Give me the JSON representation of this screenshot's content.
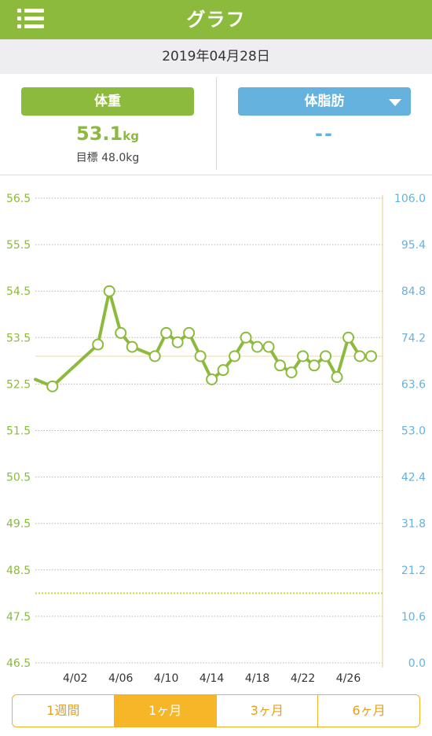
{
  "header": {
    "title": "グラフ"
  },
  "date": "2019年04月28日",
  "weight_card": {
    "label": "体重",
    "value": "53.1",
    "unit": "kg",
    "goal": "目標 48.0kg"
  },
  "fat_card": {
    "label": "体脂肪",
    "value": "--"
  },
  "tabs": [
    {
      "label": "1週間",
      "active": false
    },
    {
      "label": "1ヶ月",
      "active": true
    },
    {
      "label": "3ヶ月",
      "active": false
    },
    {
      "label": "6ヶ月",
      "active": false
    }
  ],
  "colors": {
    "weight": "#8cba3c",
    "fat": "#65b2de",
    "goal": "#d6e04a",
    "accent": "#f7b628"
  },
  "chart_data": {
    "type": "line",
    "x_tick_labels": [
      "4/02",
      "4/06",
      "4/10",
      "4/14",
      "4/18",
      "4/22",
      "4/26"
    ],
    "x_tick_days": [
      2,
      6,
      10,
      14,
      18,
      22,
      26
    ],
    "xlim_days": [
      -1.5,
      29
    ],
    "y_left": {
      "ticks": [
        "56.5",
        "55.5",
        "54.5",
        "53.5",
        "52.5",
        "51.5",
        "50.5",
        "49.5",
        "48.5",
        "47.5",
        "46.5"
      ],
      "range": [
        46.5,
        56.5
      ]
    },
    "y_right": {
      "ticks": [
        "106.0",
        "95.4",
        "84.8",
        "74.2",
        "63.6",
        "53.0",
        "42.4",
        "31.8",
        "21.2",
        "10.6",
        "0.0"
      ],
      "range": [
        0.0,
        106.0
      ]
    },
    "goal": 48.0,
    "average": 53.1,
    "series": [
      {
        "points": [
          {
            "day": -1.5,
            "value": 52.6,
            "marker": false
          },
          {
            "day": 0,
            "value": 52.45,
            "marker": true
          },
          {
            "day": 4,
            "value": 53.35,
            "marker": true
          },
          {
            "day": 5,
            "value": 54.5,
            "marker": true
          },
          {
            "day": 6,
            "value": 53.6,
            "marker": true
          },
          {
            "day": 7,
            "value": 53.3,
            "marker": true
          },
          {
            "day": 9,
            "value": 53.1,
            "marker": true
          },
          {
            "day": 10,
            "value": 53.6,
            "marker": true
          },
          {
            "day": 11,
            "value": 53.4,
            "marker": true
          },
          {
            "day": 12,
            "value": 53.6,
            "marker": true
          },
          {
            "day": 13,
            "value": 53.1,
            "marker": true
          },
          {
            "day": 14,
            "value": 52.6,
            "marker": true
          },
          {
            "day": 15,
            "value": 52.8,
            "marker": true
          },
          {
            "day": 16,
            "value": 53.1,
            "marker": true
          },
          {
            "day": 17,
            "value": 53.5,
            "marker": true
          },
          {
            "day": 18,
            "value": 53.3,
            "marker": true
          },
          {
            "day": 19,
            "value": 53.3,
            "marker": true
          },
          {
            "day": 20,
            "value": 52.9,
            "marker": true
          },
          {
            "day": 21,
            "value": 52.75,
            "marker": true
          },
          {
            "day": 22,
            "value": 53.1,
            "marker": true
          },
          {
            "day": 23,
            "value": 52.9,
            "marker": true
          },
          {
            "day": 24,
            "value": 53.1,
            "marker": true
          },
          {
            "day": 25,
            "value": 52.65,
            "marker": true
          },
          {
            "day": 26,
            "value": 53.5,
            "marker": true
          },
          {
            "day": 27,
            "value": 53.1,
            "marker": true
          },
          {
            "day": 28,
            "value": 53.1,
            "marker": true
          }
        ]
      }
    ]
  }
}
